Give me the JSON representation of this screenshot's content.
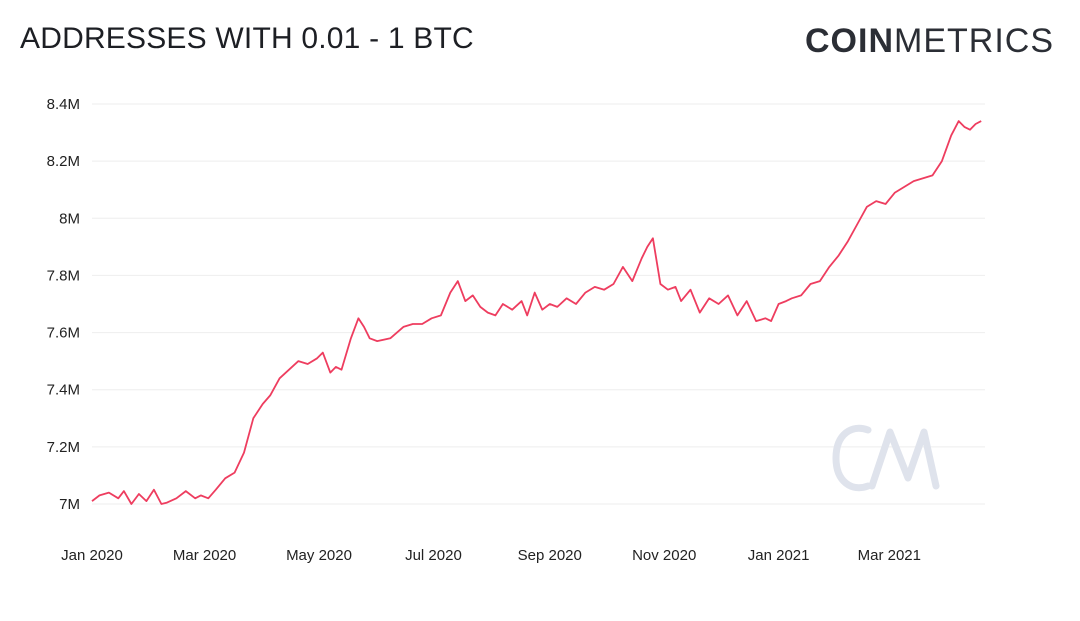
{
  "header": {
    "title": "ADDRESSES WITH 0.01 - 1 BTC",
    "brand_bold": "COIN",
    "brand_light": "METRICS"
  },
  "watermark_text": "CM",
  "chart_data": {
    "type": "line",
    "title": "ADDRESSES WITH 0.01 - 1 BTC",
    "xlabel": "",
    "ylabel": "",
    "ylim": [
      7.0,
      8.4
    ],
    "y_unit": "M",
    "grid": true,
    "x_tick_labels": [
      "Jan 2020",
      "Mar 2020",
      "May 2020",
      "Jul 2020",
      "Sep 2020",
      "Nov 2020",
      "Jan 2021",
      "Mar 2021"
    ],
    "x_tick_dates": [
      "2020-01-01",
      "2020-03-01",
      "2020-05-01",
      "2020-07-01",
      "2020-09-01",
      "2020-11-01",
      "2021-01-01",
      "2021-03-01"
    ],
    "y_tick_labels": [
      "7M",
      "7.2M",
      "7.4M",
      "7.6M",
      "7.8M",
      "8M",
      "8.2M",
      "8.4M"
    ],
    "y_tick_values": [
      7.0,
      7.2,
      7.4,
      7.6,
      7.8,
      8.0,
      8.2,
      8.4
    ],
    "series_color": "#ee3d5f",
    "series": [
      {
        "x": [
          "2020-01-01",
          "2020-01-05",
          "2020-01-10",
          "2020-01-15",
          "2020-01-18",
          "2020-01-22",
          "2020-01-26",
          "2020-01-30",
          "2020-02-03",
          "2020-02-07",
          "2020-02-10",
          "2020-02-15",
          "2020-02-20",
          "2020-02-25",
          "2020-02-28",
          "2020-03-03",
          "2020-03-07",
          "2020-03-12",
          "2020-03-17",
          "2020-03-22",
          "2020-03-27",
          "2020-04-01",
          "2020-04-05",
          "2020-04-10",
          "2020-04-15",
          "2020-04-20",
          "2020-04-25",
          "2020-04-30",
          "2020-05-03",
          "2020-05-07",
          "2020-05-10",
          "2020-05-13",
          "2020-05-18",
          "2020-05-22",
          "2020-05-25",
          "2020-05-28",
          "2020-06-01",
          "2020-06-08",
          "2020-06-15",
          "2020-06-20",
          "2020-06-25",
          "2020-06-30",
          "2020-07-05",
          "2020-07-10",
          "2020-07-14",
          "2020-07-18",
          "2020-07-22",
          "2020-07-26",
          "2020-07-30",
          "2020-08-03",
          "2020-08-07",
          "2020-08-12",
          "2020-08-17",
          "2020-08-20",
          "2020-08-24",
          "2020-08-28",
          "2020-09-01",
          "2020-09-05",
          "2020-09-10",
          "2020-09-15",
          "2020-09-20",
          "2020-09-25",
          "2020-09-30",
          "2020-10-05",
          "2020-10-10",
          "2020-10-15",
          "2020-10-20",
          "2020-10-23",
          "2020-10-26",
          "2020-10-30",
          "2020-11-03",
          "2020-11-07",
          "2020-11-10",
          "2020-11-15",
          "2020-11-20",
          "2020-11-25",
          "2020-11-30",
          "2020-12-05",
          "2020-12-10",
          "2020-12-15",
          "2020-12-20",
          "2020-12-25",
          "2020-12-28",
          "2021-01-01",
          "2021-01-05",
          "2021-01-08",
          "2021-01-13",
          "2021-01-18",
          "2021-01-23",
          "2021-01-28",
          "2021-02-02",
          "2021-02-07",
          "2021-02-12",
          "2021-02-17",
          "2021-02-22",
          "2021-02-27",
          "2021-03-04",
          "2021-03-09",
          "2021-03-14",
          "2021-03-19",
          "2021-03-24",
          "2021-03-29",
          "2021-04-03",
          "2021-04-07",
          "2021-04-10",
          "2021-04-13",
          "2021-04-16",
          "2021-04-19"
        ],
        "values": [
          7.01,
          7.03,
          7.04,
          7.02,
          7.045,
          7.0,
          7.035,
          7.01,
          7.05,
          7.0,
          7.005,
          7.02,
          7.045,
          7.02,
          7.03,
          7.02,
          7.05,
          7.09,
          7.11,
          7.18,
          7.3,
          7.35,
          7.38,
          7.44,
          7.47,
          7.5,
          7.49,
          7.51,
          7.53,
          7.46,
          7.48,
          7.47,
          7.58,
          7.65,
          7.62,
          7.58,
          7.57,
          7.58,
          7.62,
          7.63,
          7.63,
          7.65,
          7.66,
          7.74,
          7.78,
          7.71,
          7.73,
          7.69,
          7.67,
          7.66,
          7.7,
          7.68,
          7.71,
          7.66,
          7.74,
          7.68,
          7.7,
          7.69,
          7.72,
          7.7,
          7.74,
          7.76,
          7.75,
          7.77,
          7.83,
          7.78,
          7.86,
          7.9,
          7.93,
          7.77,
          7.75,
          7.76,
          7.71,
          7.75,
          7.67,
          7.72,
          7.7,
          7.73,
          7.66,
          7.71,
          7.64,
          7.65,
          7.64,
          7.7,
          7.71,
          7.72,
          7.73,
          7.77,
          7.78,
          7.83,
          7.87,
          7.92,
          7.98,
          8.04,
          8.06,
          8.05,
          8.09,
          8.11,
          8.13,
          8.14,
          8.15,
          8.2,
          8.29,
          8.34,
          8.32,
          8.31,
          8.33,
          8.34
        ]
      }
    ]
  }
}
